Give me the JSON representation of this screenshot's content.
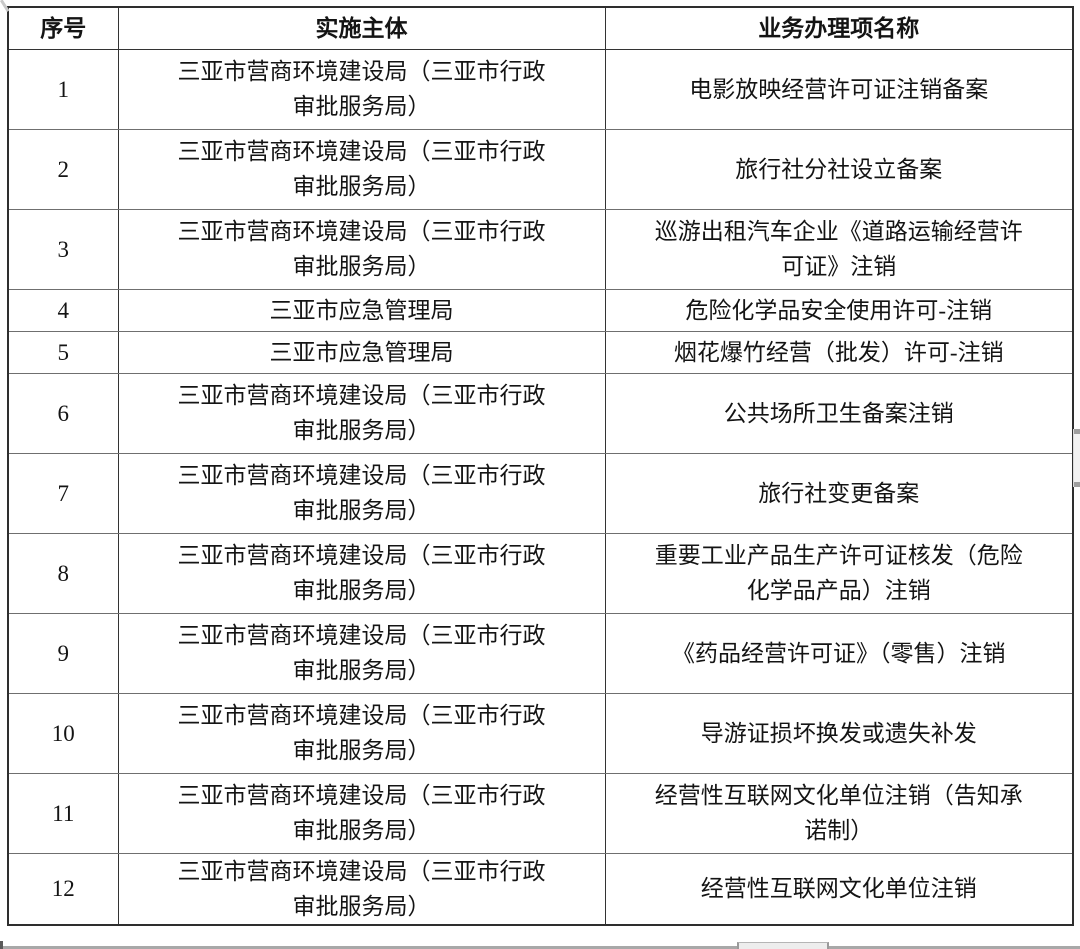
{
  "table": {
    "headers": {
      "no": "序号",
      "entity": "实施主体",
      "item": "业务办理项名称"
    },
    "rows": [
      {
        "no": "1",
        "entity": "三亚市营商环境建设局（三亚市行政\n审批服务局）",
        "item": "电影放映经营许可证注销备案"
      },
      {
        "no": "2",
        "entity": "三亚市营商环境建设局（三亚市行政\n审批服务局）",
        "item": "旅行社分社设立备案"
      },
      {
        "no": "3",
        "entity": "三亚市营商环境建设局（三亚市行政\n审批服务局）",
        "item": "巡游出租汽车企业《道路运输经营许\n可证》注销"
      },
      {
        "no": "4",
        "entity": "三亚市应急管理局",
        "item": "危险化学品安全使用许可-注销"
      },
      {
        "no": "5",
        "entity": "三亚市应急管理局",
        "item": "烟花爆竹经营（批发）许可-注销"
      },
      {
        "no": "6",
        "entity": "三亚市营商环境建设局（三亚市行政\n审批服务局）",
        "item": "公共场所卫生备案注销"
      },
      {
        "no": "7",
        "entity": "三亚市营商环境建设局（三亚市行政\n审批服务局）",
        "item": "旅行社变更备案"
      },
      {
        "no": "8",
        "entity": "三亚市营商环境建设局（三亚市行政\n审批服务局）",
        "item": "重要工业产品生产许可证核发（危险\n化学品产品）注销"
      },
      {
        "no": "9",
        "entity": "三亚市营商环境建设局（三亚市行政\n审批服务局）",
        "item": "《药品经营许可证》（零售）注销"
      },
      {
        "no": "10",
        "entity": "三亚市营商环境建设局（三亚市行政\n审批服务局）",
        "item": "导游证损坏换发或遗失补发"
      },
      {
        "no": "11",
        "entity": "三亚市营商环境建设局（三亚市行政\n审批服务局）",
        "item": "经营性互联网文化单位注销（告知承\n诺制）"
      },
      {
        "no": "12",
        "entity": "三亚市营商环境建设局（三亚市行政\n审批服务局）",
        "item": "经营性互联网文化单位注销"
      }
    ],
    "colors": {
      "text": "#141414",
      "border_outer": "#2e2e2e",
      "border_vertical": "#333333",
      "border_horizontal": "#6f6f6f",
      "background": "#ffffff"
    }
  }
}
